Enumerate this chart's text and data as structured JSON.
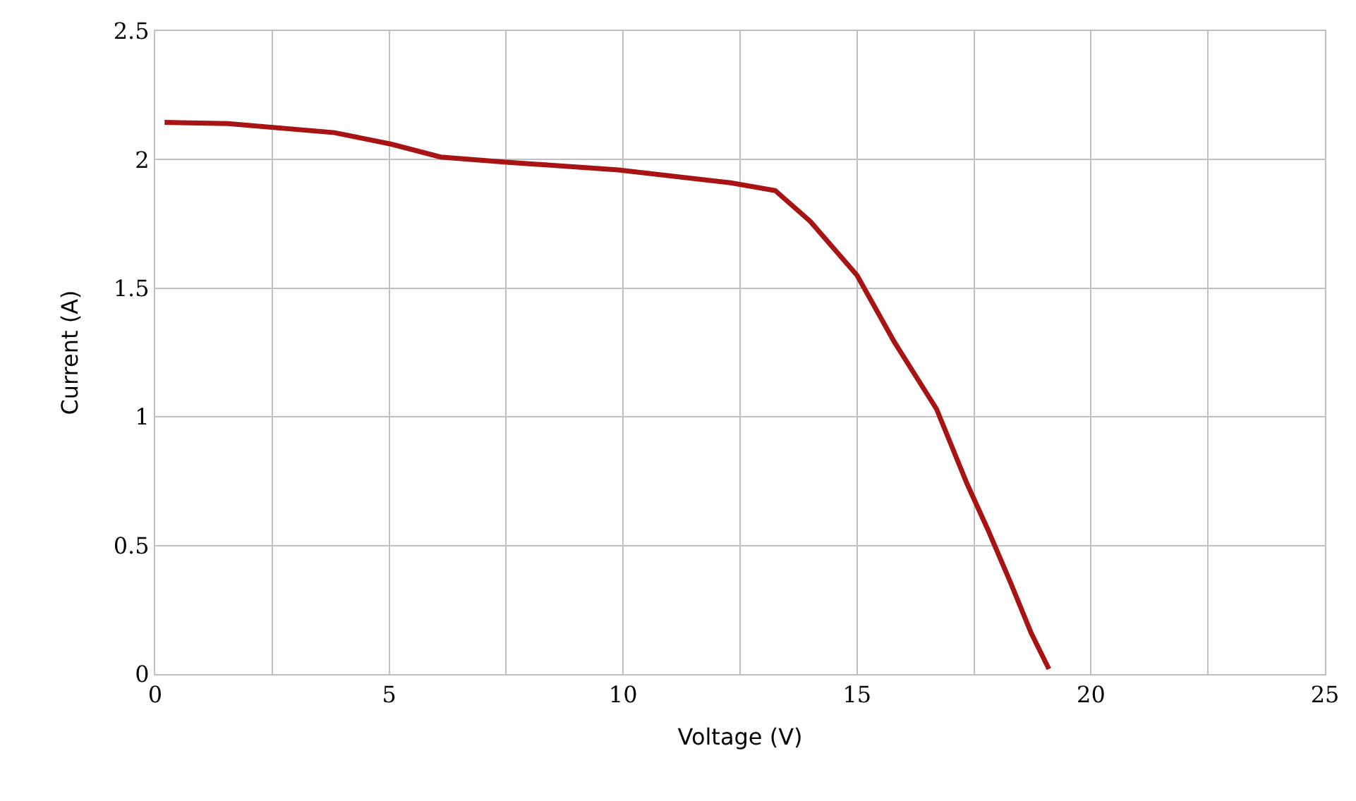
{
  "chart_data": {
    "type": "line",
    "xlabel": "Voltage (V)",
    "ylabel": "Current (A)",
    "series": [
      {
        "color": "#a81414",
        "x": [
          0.2,
          1.55,
          3.83,
          5.05,
          6.1,
          7.5,
          9.9,
          12.3,
          13.25,
          14.0,
          15.0,
          15.8,
          16.7,
          17.35,
          17.8,
          18.27,
          18.72,
          19.1
        ],
        "values": [
          2.145,
          2.14,
          2.105,
          2.06,
          2.01,
          1.99,
          1.96,
          1.91,
          1.88,
          1.76,
          1.55,
          1.29,
          1.03,
          0.74,
          0.56,
          0.36,
          0.16,
          0.02
        ]
      }
    ],
    "xlim": [
      0,
      25
    ],
    "xticks": [
      0,
      {
        "value": 2.5,
        "label": null
      },
      5,
      {
        "value": 7.5,
        "label": null
      },
      10,
      {
        "value": 12.5,
        "label": null
      },
      15,
      {
        "value": 17.5,
        "label": null
      },
      20,
      {
        "value": 22.5,
        "label": null
      },
      25
    ],
    "ylim": [
      0,
      2.5
    ],
    "yticks": [
      0,
      0.5,
      1,
      1.5,
      2,
      2.5
    ],
    "grid": true,
    "marker": "none",
    "line_style": "solid"
  }
}
